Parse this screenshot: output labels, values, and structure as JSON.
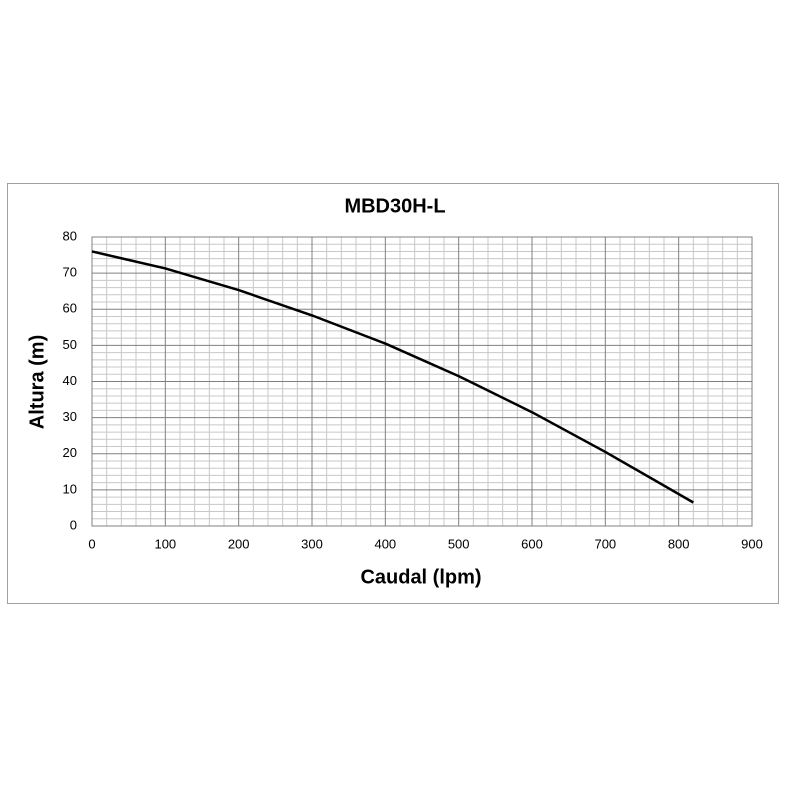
{
  "chart_data": {
    "type": "line",
    "title": "MBD30H-L",
    "x_label": "Caudal (lpm)",
    "y_label": "Altura (m)",
    "x": [
      0,
      100,
      200,
      300,
      400,
      500,
      600,
      700,
      820
    ],
    "series": [
      {
        "name": "MBD30H-L",
        "color": "#000000",
        "values": [
          76,
          71.3,
          65.3,
          58.3,
          50.5,
          41.5,
          31.5,
          20.5,
          6.5
        ]
      }
    ],
    "xlim": [
      0,
      900
    ],
    "xticks": [
      0,
      100,
      200,
      300,
      400,
      500,
      600,
      700,
      800,
      900
    ],
    "ylim": [
      0,
      80
    ],
    "yticks": [
      0,
      10,
      20,
      30,
      40,
      50,
      60,
      70,
      80
    ],
    "grid": true
  }
}
